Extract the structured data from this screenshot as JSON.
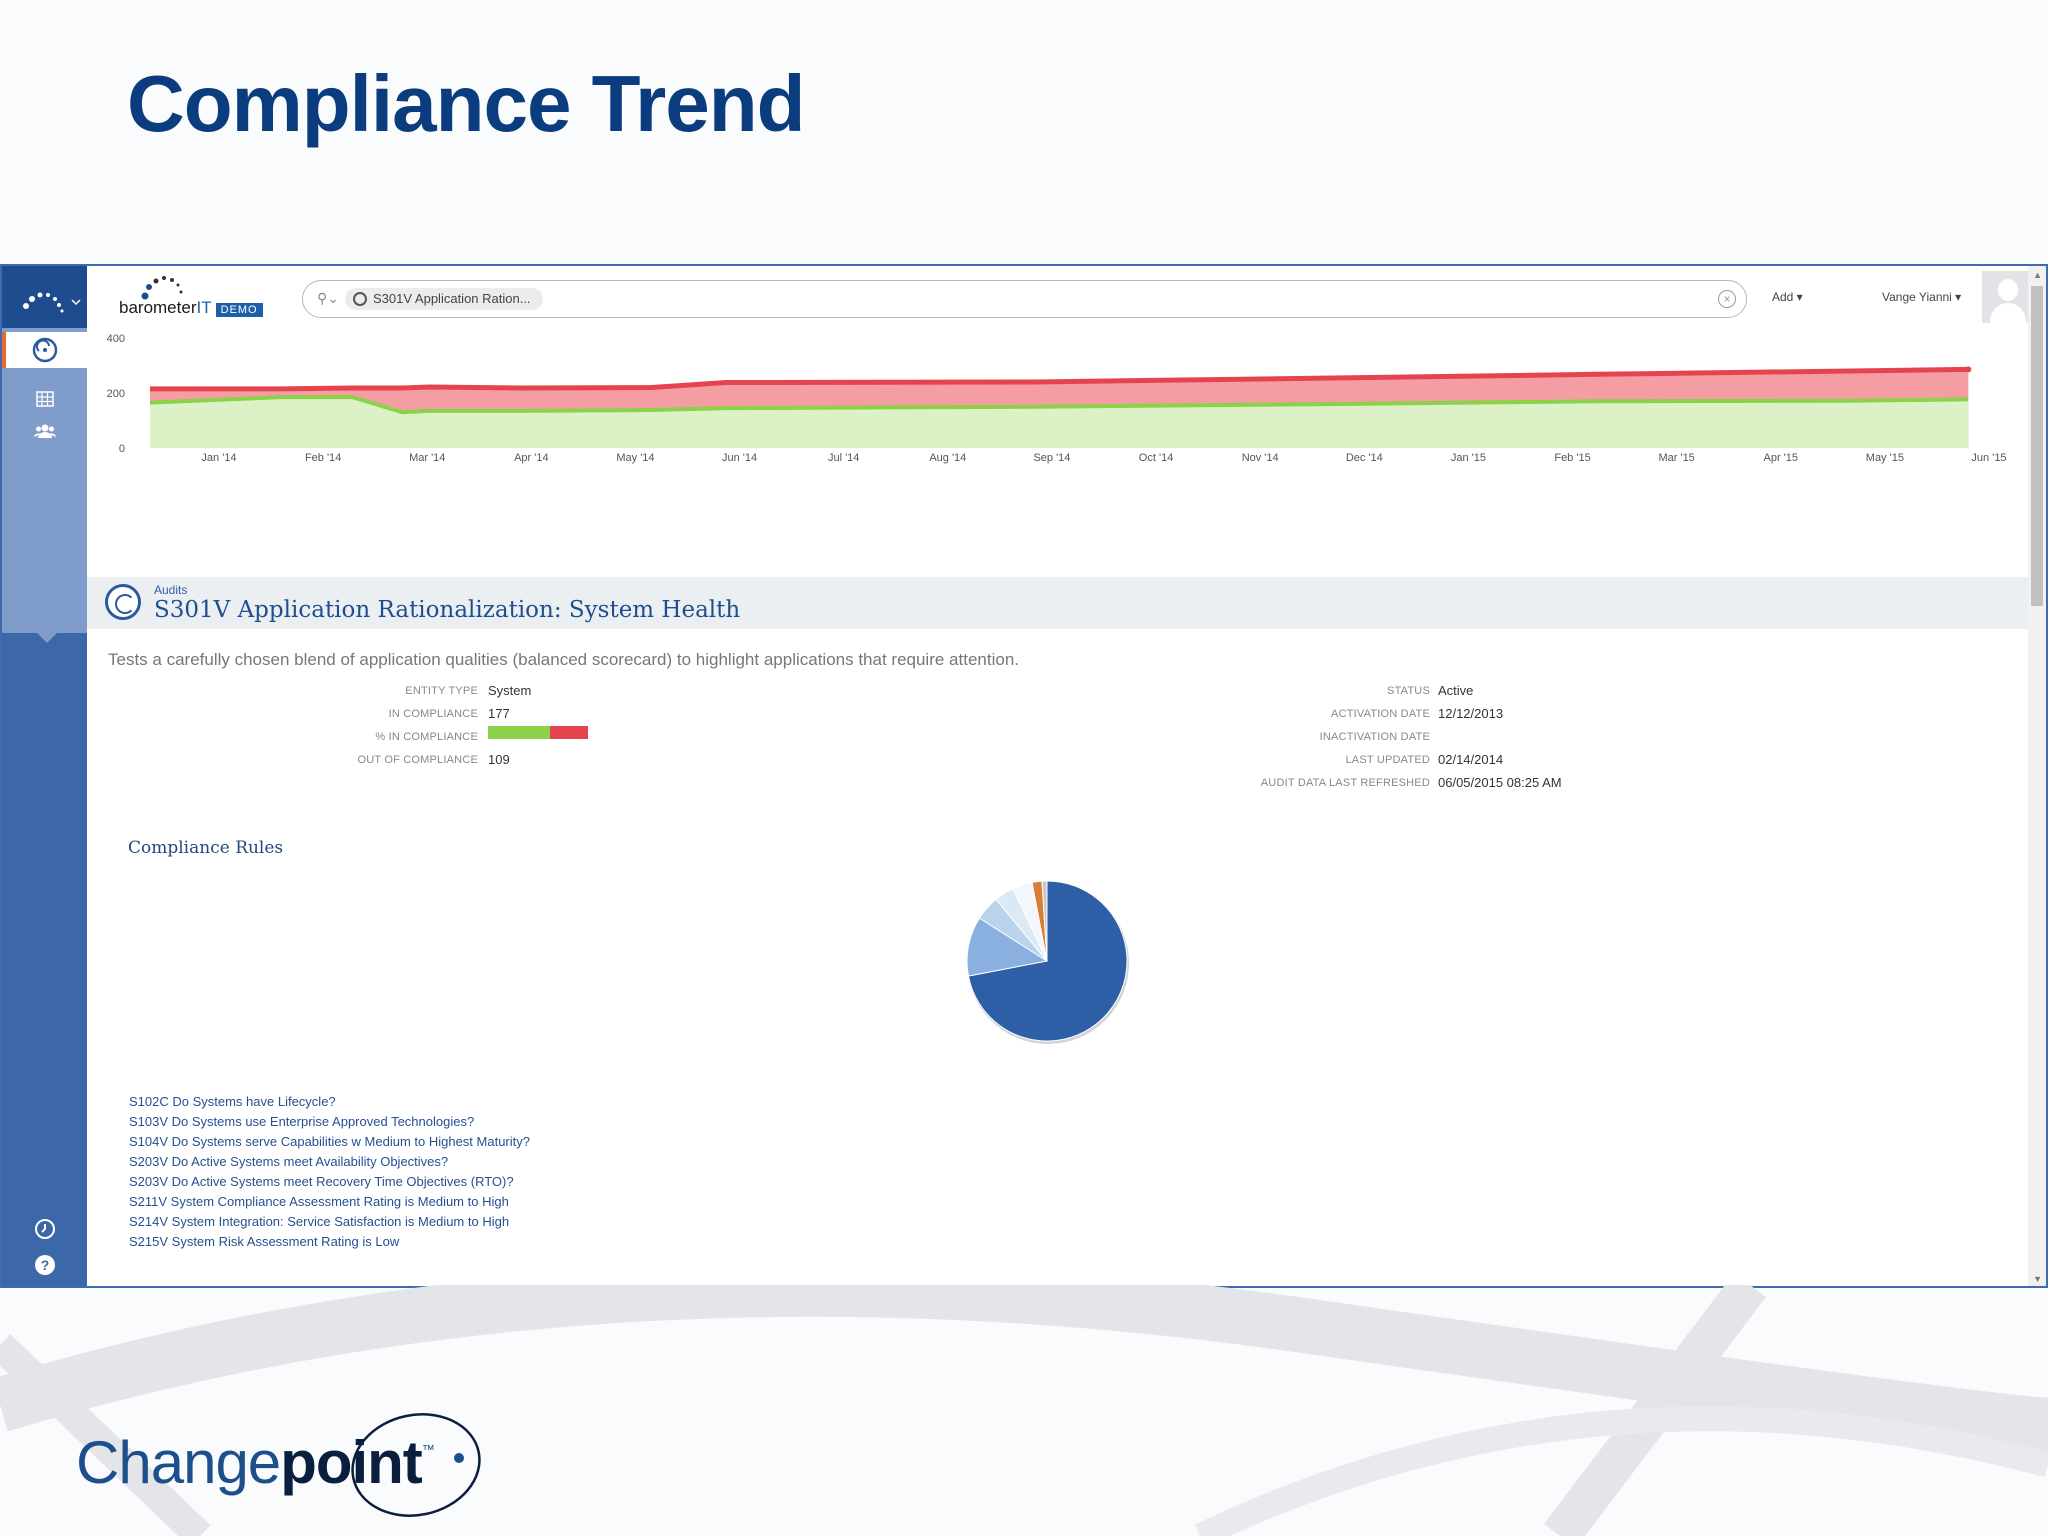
{
  "slide": {
    "title": "Compliance Trend",
    "logo_word_light": "Change",
    "logo_word_bold": "point",
    "logo_tm": "™"
  },
  "header": {
    "logo_text": "barometer",
    "logo_it": "IT",
    "logo_badge": "DEMO",
    "search_chip": "S301V Application Ration...",
    "add_menu": "Add ▾",
    "user_menu": "Vange Yianni ▾"
  },
  "sidebar": {
    "icons": [
      "barometer-logo-icon",
      "audit-icon",
      "table-icon",
      "users-icon",
      "clock-icon",
      "help-icon"
    ]
  },
  "chart_data": {
    "type": "area",
    "title": "",
    "xlabel": "",
    "ylabel": "",
    "ylim": [
      0,
      400
    ],
    "yticks": [
      "400",
      "200",
      "0"
    ],
    "xticks": [
      "Jan '14",
      "Feb '14",
      "Mar '14",
      "Apr '14",
      "May '14",
      "Jun '14",
      "Jul '14",
      "Aug '14",
      "Sep '14",
      "Oct '14",
      "Nov '14",
      "Dec '14",
      "Jan '15",
      "Feb '15",
      "Mar '15",
      "Apr '15",
      "May '15",
      "Jun '15"
    ],
    "x": [
      "2013-12-12",
      "2014-01-20",
      "2014-02-10",
      "2014-02-25",
      "2014-03-05",
      "2014-04-01",
      "2014-05-10",
      "2014-06-01",
      "2014-09-01",
      "2014-12-01",
      "2015-02-15",
      "2015-05-01",
      "2015-06-05"
    ],
    "series": [
      {
        "values": [
          215,
          215,
          218,
          218,
          222,
          218,
          220,
          238,
          240,
          255,
          268,
          280,
          286
        ]
      },
      {
        "values": [
          165,
          185,
          185,
          130,
          135,
          135,
          138,
          145,
          150,
          160,
          170,
          172,
          177
        ]
      }
    ],
    "colors": {
      "total": "#e5444f",
      "total_fill": "#f49ea3",
      "compliant": "#8cd14a",
      "compliant_fill": "#dcf2c6"
    }
  },
  "audit": {
    "category": "Audits",
    "title": "S301V Application Rationalization: System Health",
    "description": "Tests a carefully chosen blend of application qualities (balanced scorecard) to highlight applications that require attention.",
    "left_meta": [
      {
        "label": "Entity Type",
        "value": "System"
      },
      {
        "label": "In Compliance",
        "value": "177"
      },
      {
        "label": "% In Compliance",
        "value": ""
      },
      {
        "label": "Out of Compliance",
        "value": "109"
      }
    ],
    "right_meta": [
      {
        "label": "Status",
        "value": "Active"
      },
      {
        "label": "Activation Date",
        "value": "12/12/2013"
      },
      {
        "label": "Inactivation Date",
        "value": ""
      },
      {
        "label": "Last Updated",
        "value": "02/14/2014"
      },
      {
        "label": "Audit Data Last Refreshed",
        "value": "06/05/2015 08:25 AM"
      }
    ],
    "percent_compliance": 0.62
  },
  "rules": {
    "title": "Compliance Rules",
    "pie": [
      {
        "value": 72,
        "color": "#2d5ea6"
      },
      {
        "value": 12,
        "color": "#8ab0e0"
      },
      {
        "value": 5,
        "color": "#b9d3ec"
      },
      {
        "value": 4,
        "color": "#dbe9f5"
      },
      {
        "value": 4,
        "color": "#f3f6fa"
      },
      {
        "value": 2,
        "color": "#d97c38"
      },
      {
        "value": 1,
        "color": "#c7c7c7"
      }
    ],
    "links": [
      "S102C Do Systems have Lifecycle?",
      "S103V Do Systems use Enterprise Approved Technologies?",
      "S104V Do Systems serve Capabilities w Medium to Highest Maturity?",
      "S203V Do Active Systems meet Availability Objectives?",
      "S203V Do Active Systems meet Recovery Time Objectives (RTO)?",
      "S211V System Compliance Assessment Rating is Medium to High",
      "S214V System Integration: Service Satisfaction is Medium to High",
      "S215V System Risk Assessment Rating is Low"
    ]
  }
}
